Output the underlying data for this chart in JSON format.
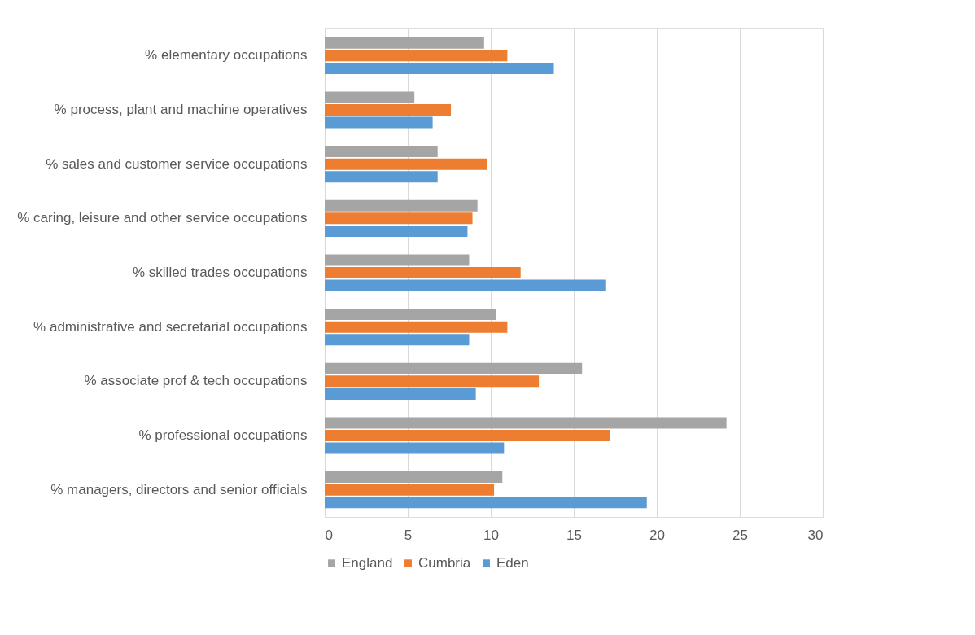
{
  "chart_data": {
    "type": "bar",
    "orientation": "horizontal",
    "categories": [
      "% elementary occupations",
      "% process, plant and machine operatives",
      "% sales and customer service occupations",
      "% caring, leisure and other service occupations",
      "% skilled trades occupations",
      "% administrative and secretarial occupations",
      "% associate prof & tech occupations",
      "% professional occupations",
      "% managers, directors and senior officials"
    ],
    "series": [
      {
        "name": "England",
        "color": "#a5a5a5",
        "values": [
          9.6,
          5.4,
          6.8,
          9.2,
          8.7,
          10.3,
          15.5,
          24.2,
          10.7
        ]
      },
      {
        "name": "Cumbria",
        "color": "#ed7d31",
        "values": [
          11.0,
          7.6,
          9.8,
          8.9,
          11.8,
          11.0,
          12.9,
          17.2,
          10.2
        ]
      },
      {
        "name": "Eden",
        "color": "#5b9bd5",
        "values": [
          13.8,
          6.5,
          6.8,
          8.6,
          16.9,
          8.7,
          9.1,
          10.8,
          19.4
        ]
      }
    ],
    "xlim": [
      0,
      30
    ],
    "xticks": [
      0,
      5,
      10,
      15,
      20,
      25,
      30
    ],
    "grid": "x",
    "legend": "bottom"
  }
}
